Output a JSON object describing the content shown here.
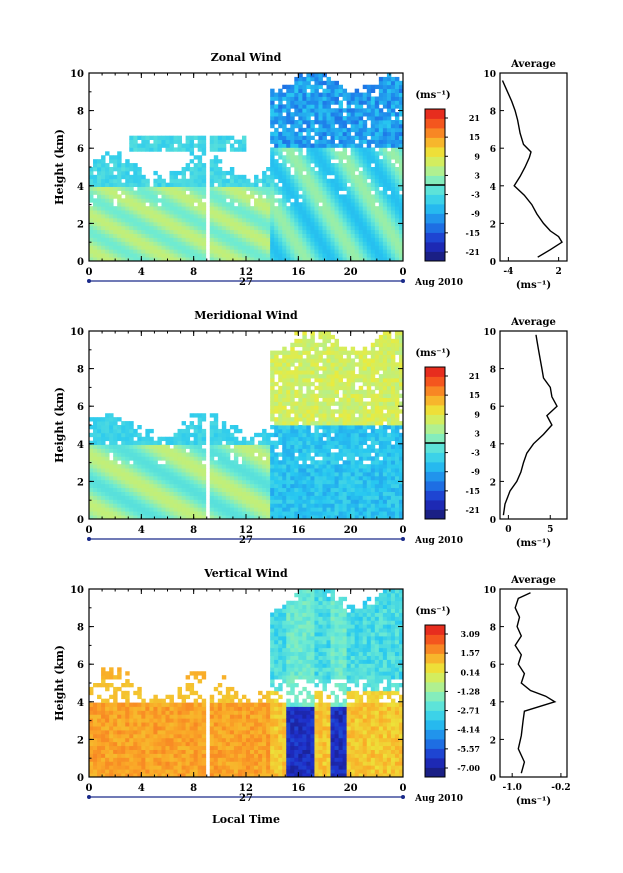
{
  "figure": {
    "xlabel_bottom": "Local Time",
    "date_day": "27",
    "date_label": "Aug 2010"
  },
  "chart_data": [
    {
      "type": "heatmap",
      "title": "Zonal Wind",
      "ylabel": "Height (km)",
      "xlabel": "Local Time",
      "ylim": [
        0,
        10
      ],
      "yticks": [
        "0",
        "2",
        "4",
        "6",
        "8",
        "10"
      ],
      "xticks": [
        "0",
        "4",
        "8",
        "12",
        "16",
        "20",
        "0"
      ],
      "colorbar": {
        "unit": "(ms⁻¹)",
        "ticks": [
          "21",
          "15",
          "9",
          "3",
          "-3",
          "-9",
          "-15",
          "-21"
        ],
        "range": [
          -24,
          24
        ],
        "zero_line": true
      },
      "profile": {
        "title": "Average",
        "xticks": [
          "-4",
          "2"
        ],
        "xlim": [
          -5,
          3
        ],
        "xlabel": "(ms⁻¹)",
        "height_km": [
          0.2,
          0.6,
          1.0,
          1.3,
          1.6,
          2.0,
          2.5,
          3.0,
          3.5,
          4.0,
          4.5,
          5.0,
          5.5,
          5.8,
          6.2,
          6.8,
          7.5,
          8.0,
          8.5,
          9.0,
          9.3,
          9.6
        ],
        "values": [
          -0.5,
          1.0,
          2.4,
          2.0,
          1.0,
          0.2,
          -0.6,
          -1.2,
          -2.1,
          -3.3,
          -2.6,
          -2.0,
          -1.5,
          -1.3,
          -2.2,
          -2.6,
          -2.9,
          -3.2,
          -3.6,
          -4.1,
          -4.4,
          -4.7
        ]
      }
    },
    {
      "type": "heatmap",
      "title": "Meridional Wind",
      "ylabel": "Height (km)",
      "xlabel": "Local Time",
      "ylim": [
        0,
        10
      ],
      "yticks": [
        "0",
        "2",
        "4",
        "6",
        "8",
        "10"
      ],
      "xticks": [
        "0",
        "4",
        "8",
        "12",
        "16",
        "20",
        "0"
      ],
      "colorbar": {
        "unit": "(ms⁻¹)",
        "ticks": [
          "21",
          "15",
          "9",
          "3",
          "-3",
          "-9",
          "-15",
          "-21"
        ],
        "range": [
          -24,
          24
        ],
        "zero_line": true
      },
      "profile": {
        "title": "Average",
        "xticks": [
          "0",
          "5"
        ],
        "xlim": [
          -1,
          7
        ],
        "xlabel": "(ms⁻¹)",
        "height_km": [
          0.2,
          0.8,
          1.5,
          2.0,
          2.5,
          3.0,
          3.5,
          4.0,
          4.5,
          5.0,
          5.5,
          6.0,
          6.5,
          7.0,
          7.5,
          8.0,
          8.5,
          9.0,
          9.5,
          9.8
        ],
        "values": [
          -0.6,
          -0.4,
          0.2,
          1.0,
          1.5,
          1.8,
          2.2,
          3.0,
          4.2,
          5.2,
          4.6,
          5.8,
          5.2,
          5.0,
          4.2,
          4.0,
          3.8,
          3.6,
          3.4,
          3.3
        ]
      }
    },
    {
      "type": "heatmap",
      "title": "Vertical Wind",
      "ylabel": "Height (km)",
      "xlabel": "Local Time",
      "ylim": [
        0,
        10
      ],
      "yticks": [
        "0",
        "2",
        "4",
        "6",
        "8",
        "10"
      ],
      "xticks": [
        "0",
        "4",
        "8",
        "12",
        "16",
        "20",
        "0"
      ],
      "colorbar": {
        "unit": "(ms⁻¹)",
        "ticks": [
          "3.09",
          "1.57",
          "0.14",
          "-1.28",
          "-2.71",
          "-4.14",
          "-5.57",
          "-7.00"
        ],
        "range": [
          -7.7,
          3.8
        ],
        "zero_line": false
      },
      "profile": {
        "title": "Average",
        "xticks": [
          "-1.0",
          "-0.2"
        ],
        "xlim": [
          -1.2,
          -0.1
        ],
        "xlabel": "(ms⁻¹)",
        "height_km": [
          0.2,
          0.8,
          1.5,
          2.2,
          3.0,
          3.5,
          3.8,
          4.0,
          4.3,
          4.6,
          5.0,
          5.5,
          6.0,
          6.5,
          7.0,
          7.5,
          8.0,
          8.5,
          9.0,
          9.5,
          9.8
        ],
        "values": [
          -0.85,
          -0.8,
          -0.9,
          -0.85,
          -0.82,
          -0.8,
          -0.5,
          -0.3,
          -0.45,
          -0.7,
          -0.85,
          -0.8,
          -0.9,
          -0.85,
          -0.95,
          -0.85,
          -0.92,
          -0.88,
          -0.95,
          -0.9,
          -0.7
        ]
      }
    }
  ]
}
